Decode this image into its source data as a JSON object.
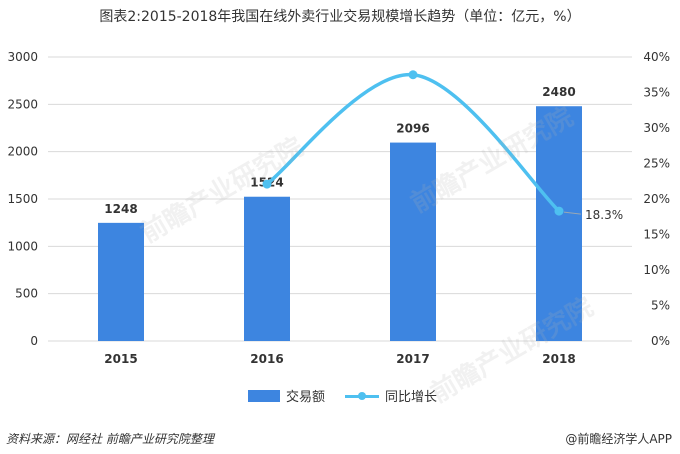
{
  "title": "图表2:2015-2018年我国在线外卖行业交易规模增长趋势（单位：亿元，%）",
  "colors": {
    "bar": "#3d85e0",
    "line": "#4ec0f0",
    "grid": "#d9d9d9",
    "end_marker": "#9aa8b4"
  },
  "chart_data": {
    "type": "bar+line",
    "categories": [
      "2015",
      "2016",
      "2017",
      "2018"
    ],
    "series": [
      {
        "name": "交易额",
        "type": "bar",
        "axis": "left",
        "values": [
          1248,
          1524,
          2096,
          2480
        ]
      },
      {
        "name": "同比增长",
        "type": "line",
        "axis": "right",
        "values": [
          null,
          22.1,
          37.5,
          18.3
        ]
      }
    ],
    "bar_labels": [
      "1248",
      "1524",
      "2096",
      "2480"
    ],
    "line_label": "18.3%",
    "ylim_left": [
      0,
      3000
    ],
    "yticks_left": [
      "0",
      "500",
      "1000",
      "1500",
      "2000",
      "2500",
      "3000"
    ],
    "ylim_right": [
      0,
      40
    ],
    "yticks_right": [
      "0%",
      "5%",
      "10%",
      "15%",
      "20%",
      "25%",
      "30%",
      "35%",
      "40%"
    ],
    "grid": "horizontal",
    "legend_position": "bottom"
  },
  "watermark_text": "前瞻产业研究院",
  "footer": {
    "source": "资料来源：网经社  前瞻产业研究院整理",
    "brand": "@前瞻经济学人APP"
  }
}
